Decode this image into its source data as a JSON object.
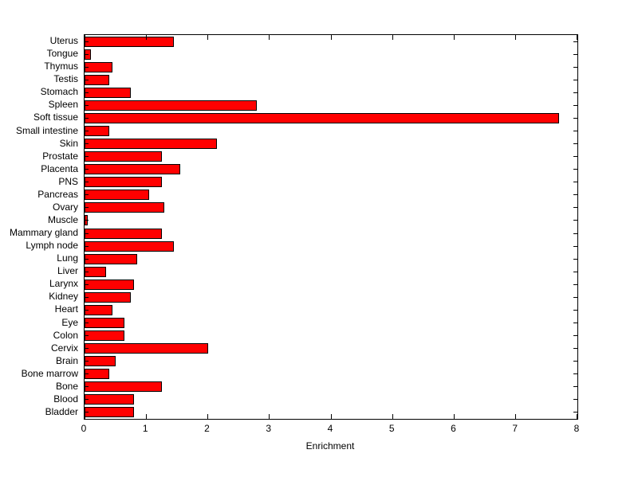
{
  "chart_data": {
    "type": "bar",
    "orientation": "horizontal",
    "title": "",
    "xlabel": "Enrichment",
    "ylabel": "",
    "xlim": [
      0,
      8
    ],
    "xticks": [
      0,
      1,
      2,
      3,
      4,
      5,
      6,
      7,
      8
    ],
    "grid": false,
    "legend_position": "none",
    "bar_color": "#ff0000",
    "bar_edge_color": "#000000",
    "background_color": "#ffffff",
    "categories": [
      "Uterus",
      "Tongue",
      "Thymus",
      "Testis",
      "Stomach",
      "Spleen",
      "Soft tissue",
      "Small intestine",
      "Skin",
      "Prostate",
      "Placenta",
      "PNS",
      "Pancreas",
      "Ovary",
      "Muscle",
      "Mammary gland",
      "Lymph node",
      "Lung",
      "Liver",
      "Larynx",
      "Kidney",
      "Heart",
      "Eye",
      "Colon",
      "Cervix",
      "Brain",
      "Bone marrow",
      "Bone",
      "Blood",
      "Bladder"
    ],
    "values": [
      1.45,
      0.1,
      0.45,
      0.4,
      0.75,
      2.8,
      7.7,
      0.4,
      2.15,
      1.25,
      1.55,
      1.25,
      1.05,
      1.3,
      0.05,
      1.25,
      1.45,
      0.85,
      0.35,
      0.8,
      0.75,
      0.45,
      0.65,
      0.65,
      2.0,
      0.5,
      0.4,
      1.25,
      0.8,
      0.8
    ]
  }
}
